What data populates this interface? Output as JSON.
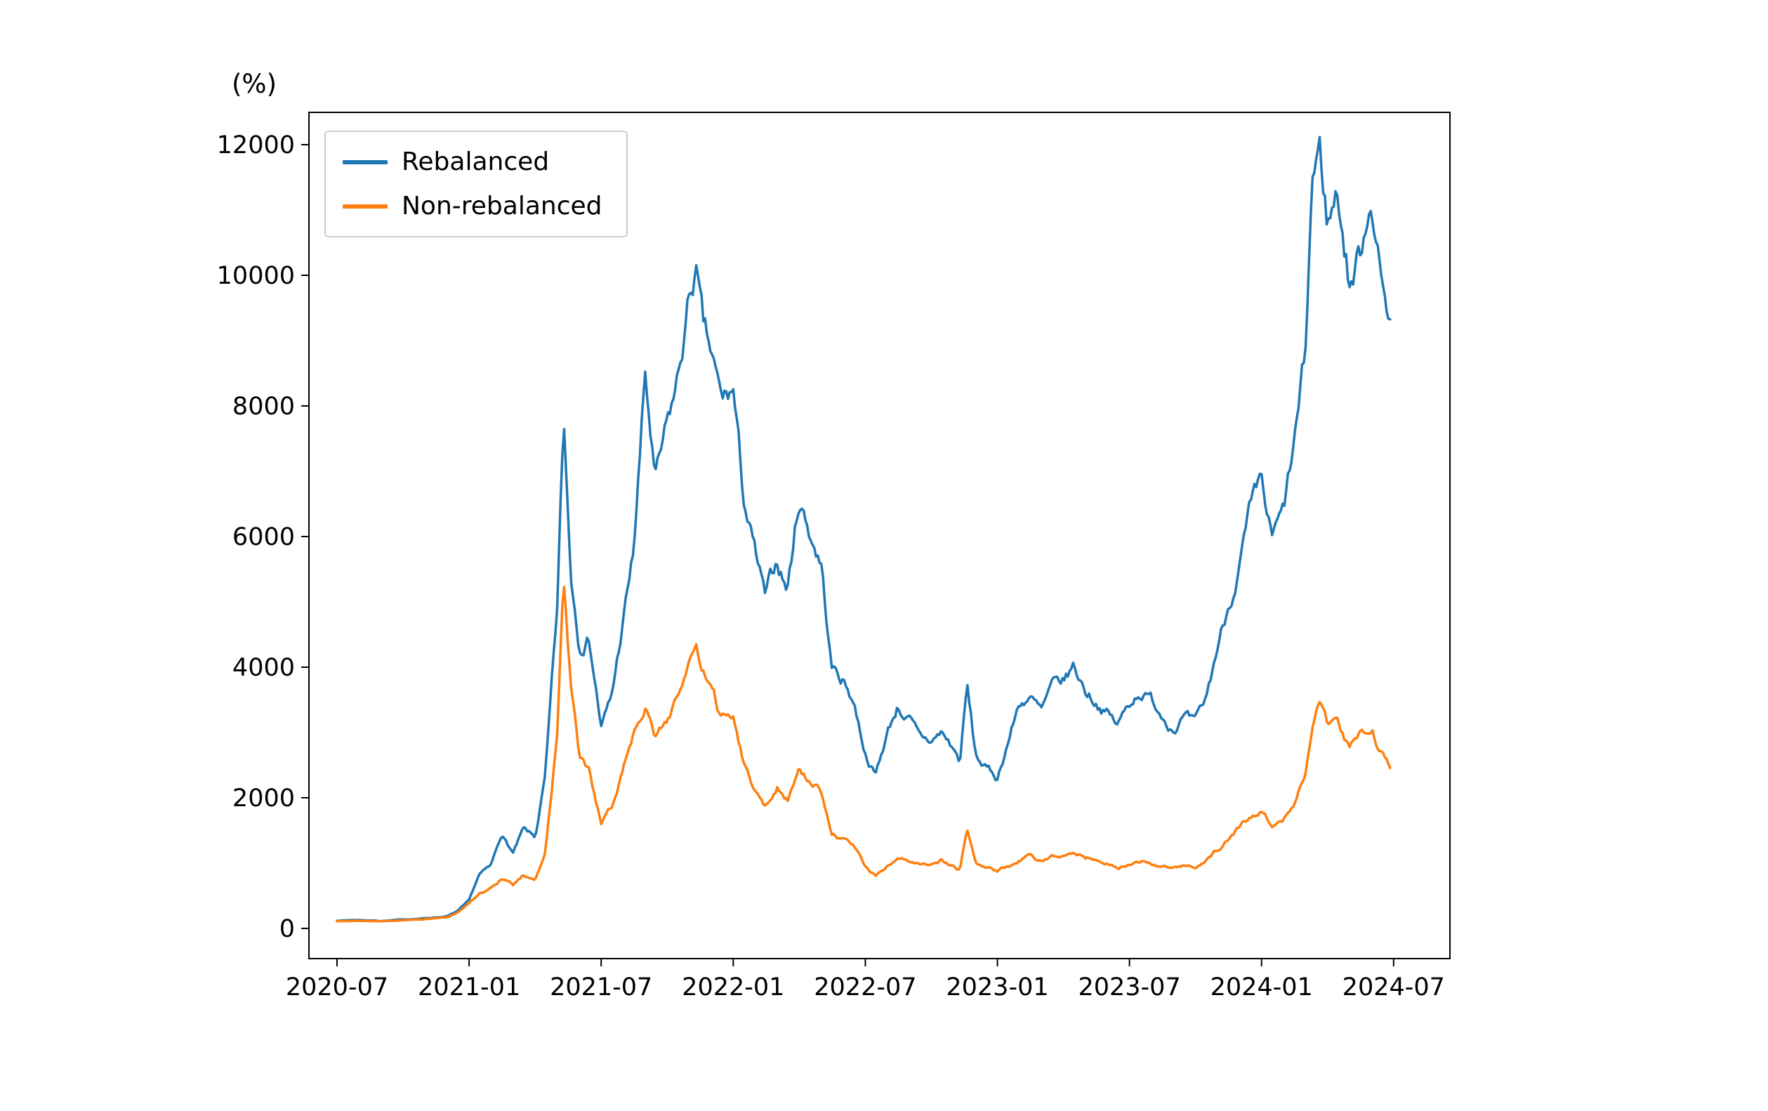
{
  "chart_data": {
    "type": "line",
    "title": "",
    "ylabel": "(%)",
    "xlabel": "",
    "grid": false,
    "legend_position": "upper left",
    "x_tick_labels": [
      "2020-07",
      "2021-01",
      "2021-07",
      "2022-01",
      "2022-07",
      "2023-01",
      "2023-07",
      "2024-01",
      "2024-07"
    ],
    "y_ticks": [
      0,
      2000,
      4000,
      6000,
      8000,
      10000,
      12000
    ],
    "ylim": [
      -460,
      12480
    ],
    "x_dates": [
      "2020-07-01",
      "2020-08-01",
      "2020-09-01",
      "2020-10-01",
      "2020-11-01",
      "2020-12-01",
      "2020-12-15",
      "2021-01-01",
      "2021-01-15",
      "2021-02-01",
      "2021-02-15",
      "2021-03-01",
      "2021-03-15",
      "2021-04-01",
      "2021-04-15",
      "2021-05-01",
      "2021-05-10",
      "2021-05-20",
      "2021-06-01",
      "2021-06-15",
      "2021-07-01",
      "2021-07-15",
      "2021-08-01",
      "2021-08-15",
      "2021-09-01",
      "2021-09-15",
      "2021-10-01",
      "2021-10-15",
      "2021-11-01",
      "2021-11-10",
      "2021-11-20",
      "2021-12-01",
      "2021-12-15",
      "2022-01-01",
      "2022-01-15",
      "2022-02-01",
      "2022-02-15",
      "2022-03-01",
      "2022-03-15",
      "2022-04-01",
      "2022-04-15",
      "2022-05-01",
      "2022-05-15",
      "2022-06-01",
      "2022-06-15",
      "2022-07-01",
      "2022-07-15",
      "2022-08-01",
      "2022-08-15",
      "2022-09-01",
      "2022-09-15",
      "2022-10-01",
      "2022-10-15",
      "2022-11-01",
      "2022-11-10",
      "2022-11-20",
      "2022-12-01",
      "2022-12-15",
      "2023-01-01",
      "2023-01-15",
      "2023-02-01",
      "2023-02-15",
      "2023-03-01",
      "2023-03-15",
      "2023-04-01",
      "2023-04-15",
      "2023-05-01",
      "2023-05-15",
      "2023-06-01",
      "2023-06-15",
      "2023-07-01",
      "2023-07-15",
      "2023-08-01",
      "2023-08-15",
      "2023-09-01",
      "2023-09-15",
      "2023-10-01",
      "2023-10-15",
      "2023-11-01",
      "2023-11-15",
      "2023-12-01",
      "2023-12-15",
      "2024-01-01",
      "2024-01-15",
      "2024-02-01",
      "2024-02-15",
      "2024-03-01",
      "2024-03-10",
      "2024-03-20",
      "2024-04-01",
      "2024-04-15",
      "2024-05-01",
      "2024-05-15",
      "2024-06-01",
      "2024-06-15",
      "2024-06-28"
    ],
    "series": [
      {
        "name": "Rebalanced",
        "color": "#1f77b4",
        "values": [
          120,
          130,
          115,
          135,
          155,
          185,
          260,
          420,
          820,
          950,
          1450,
          1150,
          1500,
          1380,
          2300,
          4800,
          7700,
          5400,
          4400,
          4500,
          3100,
          3500,
          4700,
          5700,
          8400,
          6800,
          7600,
          8300,
          9600,
          10100,
          9100,
          8700,
          8000,
          8200,
          6600,
          5700,
          5000,
          5600,
          5200,
          6600,
          6100,
          5600,
          4000,
          3800,
          3500,
          2700,
          2350,
          3000,
          3400,
          3200,
          2900,
          2850,
          3000,
          2750,
          2550,
          3700,
          2650,
          2450,
          2300,
          2850,
          3450,
          3550,
          3300,
          3650,
          3750,
          4000,
          3650,
          3500,
          3300,
          3100,
          3450,
          3650,
          3500,
          3300,
          3100,
          3250,
          3100,
          3450,
          4300,
          4900,
          5600,
          6300,
          6700,
          5900,
          6300,
          7300,
          8700,
          11400,
          11900,
          10800,
          11300,
          9900,
          10300,
          11400,
          9800,
          9400
        ]
      },
      {
        "name": "Non-rebalanced",
        "color": "#ff7f0e",
        "values": [
          110,
          120,
          108,
          125,
          140,
          170,
          240,
          390,
          520,
          620,
          760,
          660,
          800,
          760,
          1150,
          2950,
          5300,
          3600,
          2600,
          2400,
          1600,
          1800,
          2500,
          3000,
          3500,
          2900,
          3200,
          3600,
          4000,
          4250,
          3900,
          3600,
          3200,
          3300,
          2600,
          2100,
          1900,
          2200,
          2000,
          2400,
          2250,
          2100,
          1450,
          1350,
          1250,
          950,
          820,
          950,
          1050,
          1000,
          960,
          1000,
          1050,
          950,
          900,
          1500,
          1000,
          920,
          860,
          950,
          1050,
          1100,
          1000,
          1100,
          1150,
          1200,
          1100,
          1050,
          1000,
          920,
          1000,
          1050,
          1000,
          960,
          910,
          950,
          900,
          1000,
          1200,
          1350,
          1550,
          1700,
          1800,
          1600,
          1700,
          1950,
          2400,
          3000,
          3400,
          3100,
          3200,
          2800,
          2900,
          3050,
          2700,
          2500
        ]
      }
    ]
  }
}
